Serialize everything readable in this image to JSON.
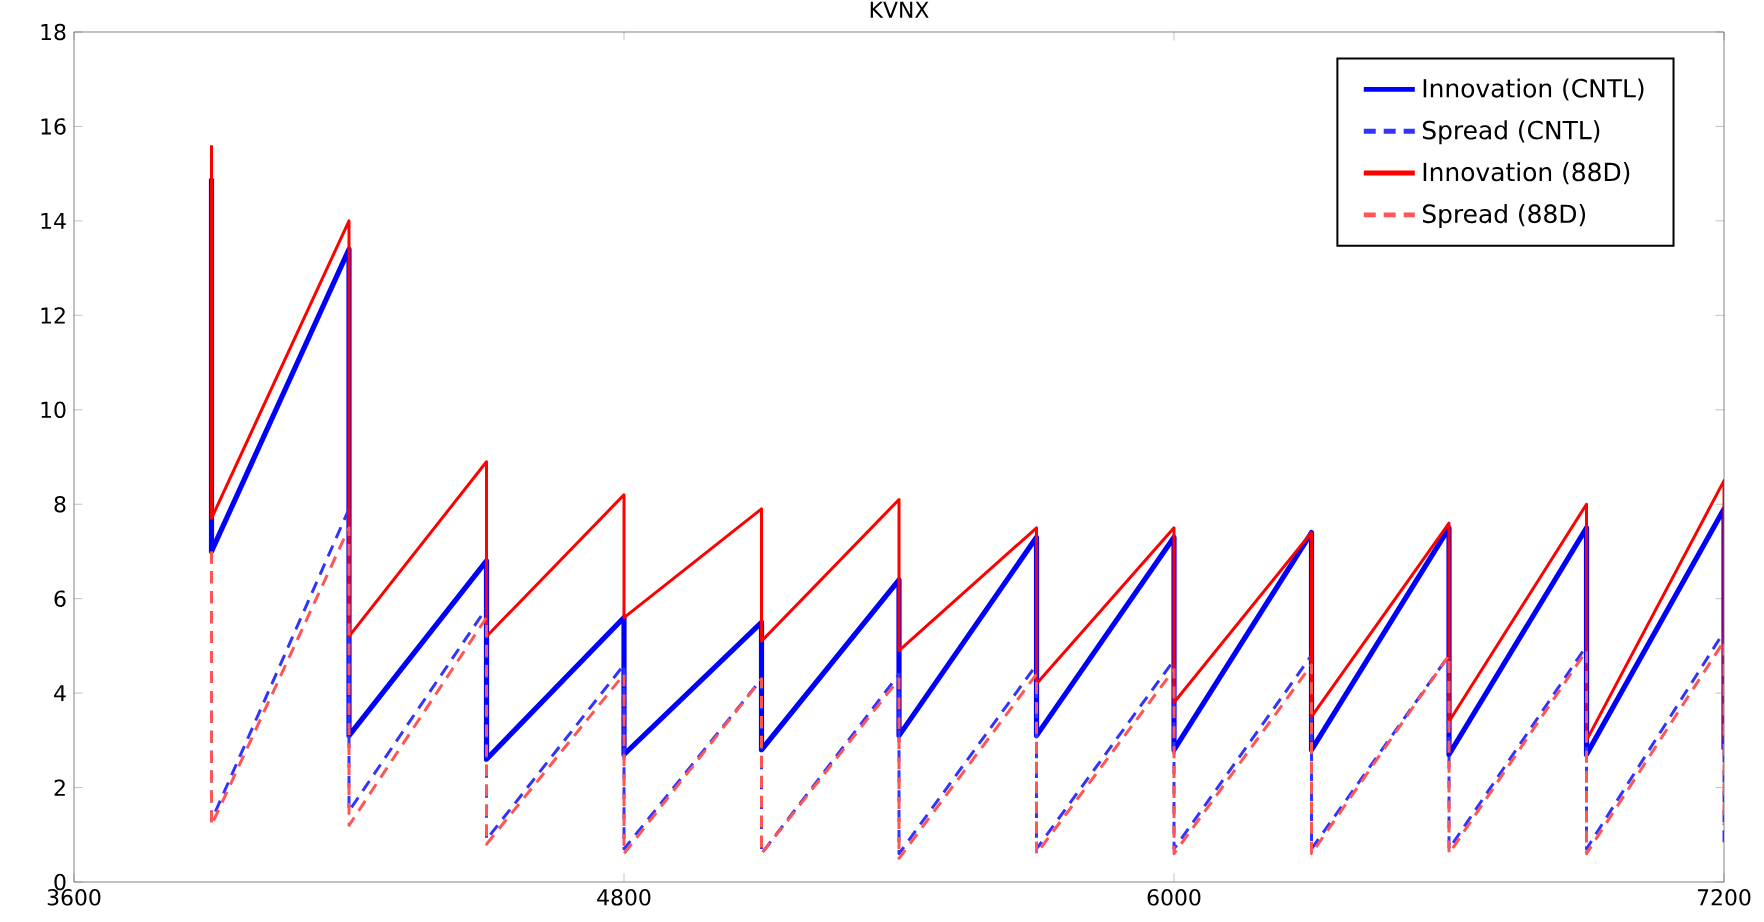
{
  "chart_data": {
    "type": "line",
    "title": "KVNX",
    "x": [
      3900,
      3900,
      4200,
      4200,
      4500,
      4500,
      4800,
      4800,
      5100,
      5100,
      5400,
      5400,
      5700,
      5700,
      6000,
      6000,
      6300,
      6300,
      6600,
      6600,
      6900,
      6900,
      7200,
      7200
    ],
    "series": [
      {
        "name": "Innovation (CNTL)",
        "color": "#0000ff",
        "line_style": "solid",
        "values": [
          14.9,
          7.0,
          13.4,
          3.1,
          6.8,
          2.6,
          5.6,
          2.7,
          5.5,
          2.8,
          6.4,
          3.1,
          7.3,
          3.1,
          7.3,
          2.8,
          7.4,
          2.8,
          7.5,
          2.7,
          7.5,
          2.7,
          7.9,
          2.8
        ]
      },
      {
        "name": "Spread (CNTL)",
        "color": "#3333ff",
        "line_style": "dashed",
        "values": [
          7.0,
          1.3,
          7.9,
          1.5,
          5.8,
          0.9,
          4.6,
          0.7,
          4.3,
          0.6,
          4.4,
          0.6,
          4.6,
          0.7,
          4.7,
          0.7,
          4.8,
          0.7,
          4.8,
          0.7,
          5.0,
          0.7,
          5.3,
          0.7
        ]
      },
      {
        "name": "Innovation (88D)",
        "color": "#ff0000",
        "line_style": "solid",
        "values": [
          15.6,
          7.7,
          14.0,
          5.2,
          8.9,
          5.2,
          8.2,
          5.6,
          7.9,
          5.1,
          8.1,
          4.9,
          7.5,
          4.2,
          7.5,
          3.8,
          7.4,
          3.5,
          7.6,
          3.4,
          8.0,
          3.0,
          8.5,
          3.0
        ]
      },
      {
        "name": "Spread (88D)",
        "color": "#ff5555",
        "line_style": "dashed",
        "values": [
          7.0,
          1.2,
          7.5,
          1.2,
          5.6,
          0.8,
          4.4,
          0.6,
          4.3,
          0.6,
          4.3,
          0.5,
          4.4,
          0.6,
          4.5,
          0.6,
          4.6,
          0.6,
          4.8,
          0.6,
          4.9,
          0.6,
          5.1,
          1.2
        ]
      }
    ],
    "xlim": [
      3600,
      7200
    ],
    "xticks": [
      3600,
      4800,
      6000,
      7200
    ],
    "ylim": [
      0,
      18
    ],
    "yticks": [
      0,
      2,
      4,
      6,
      8,
      10,
      12,
      14,
      16,
      18
    ],
    "grid": false,
    "legend": "top right",
    "marker": "none"
  }
}
